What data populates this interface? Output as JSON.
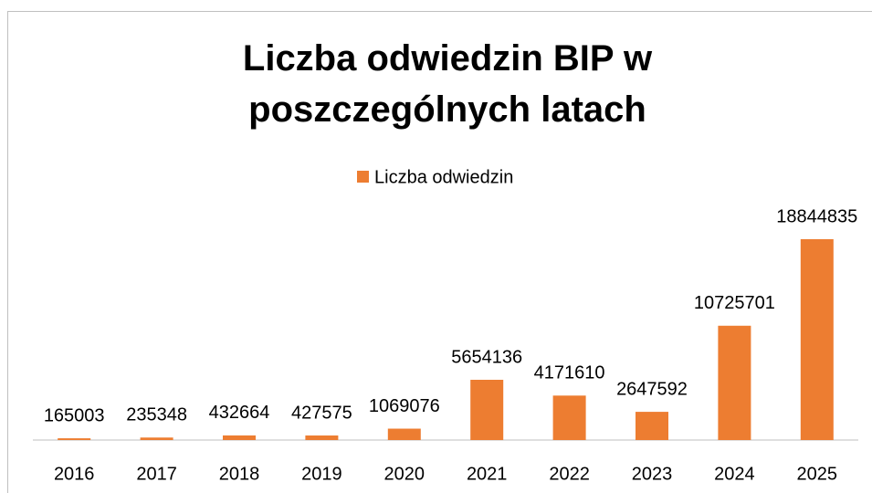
{
  "chart_data": {
    "type": "bar",
    "title": "Liczba odwiedzin BIP w poszczególnych latach",
    "categories": [
      "2016",
      "2017",
      "2018",
      "2019",
      "2020",
      "2021",
      "2022",
      "2023",
      "2024",
      "2025"
    ],
    "series": [
      {
        "name": "Liczba odwiedzin",
        "color": "#ed7d31",
        "values": [
          165003,
          235348,
          432664,
          427575,
          1069076,
          5654136,
          4171610,
          2647592,
          10725701,
          18844835
        ]
      }
    ],
    "legend": "top"
  }
}
